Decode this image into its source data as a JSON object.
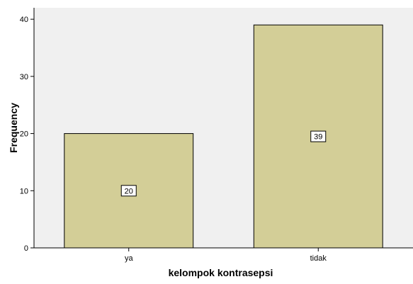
{
  "chart_data": {
    "type": "bar",
    "categories": [
      "ya",
      "tidak"
    ],
    "values": [
      20,
      39
    ],
    "data_labels": [
      "20",
      "39"
    ],
    "xlabel": "kelompok kontrasepsi",
    "ylabel": "Frequency",
    "ylim": [
      0,
      42
    ],
    "yticks": [
      0,
      10,
      20,
      30,
      40
    ],
    "grid": false,
    "legend": "none"
  },
  "colors": {
    "plot_background": "#f0f0f0",
    "bar_fill": "#d3ce97",
    "bar_stroke": "#000000",
    "axis": "#000000",
    "label_box": "#ffffff"
  }
}
